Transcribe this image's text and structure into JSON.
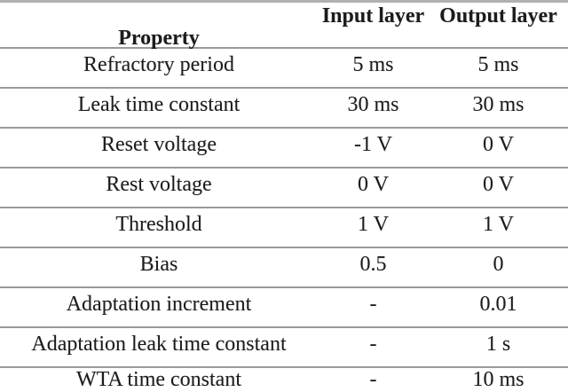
{
  "table": {
    "columns": [
      {
        "key": "property",
        "label": "Property"
      },
      {
        "key": "input",
        "label": "Input layer"
      },
      {
        "key": "output",
        "label": "Output layer"
      }
    ],
    "rows": [
      {
        "property": "Refractory period",
        "input": "5 ms",
        "output": "5 ms"
      },
      {
        "property": "Leak time constant",
        "input": "30 ms",
        "output": "30 ms"
      },
      {
        "property": "Reset voltage",
        "input": "-1 V",
        "output": "0 V"
      },
      {
        "property": "Rest voltage",
        "input": "0 V",
        "output": "0 V"
      },
      {
        "property": "Threshold",
        "input": "1 V",
        "output": "1 V"
      },
      {
        "property": "Bias",
        "input": "0.5",
        "output": "0"
      },
      {
        "property": "Adaptation increment",
        "input": "-",
        "output": "0.01"
      },
      {
        "property": "Adaptation leak time constant",
        "input": "-",
        "output": "1 s"
      },
      {
        "property": "WTA time constant",
        "input": "-",
        "output": "10 ms"
      }
    ],
    "colors": {
      "background": "#ffffff",
      "text": "#1c1c1c",
      "row_line": "#9a9a9a",
      "top_line": "#b0b0b0"
    }
  }
}
